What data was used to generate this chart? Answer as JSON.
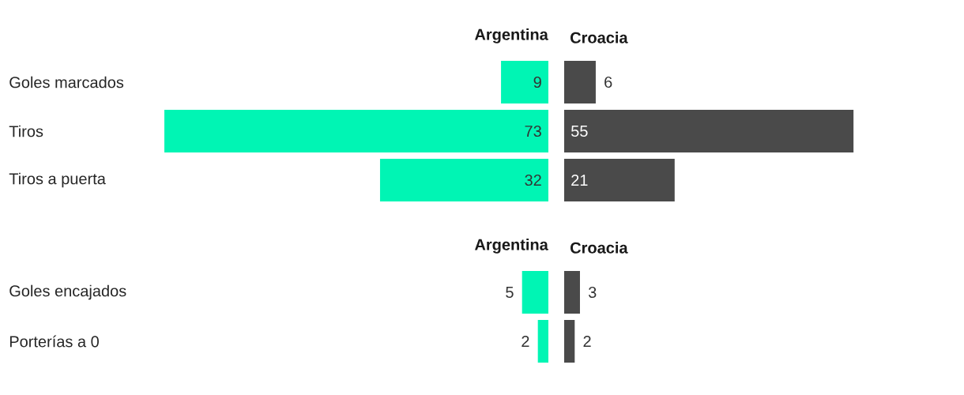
{
  "chart_data": [
    {
      "type": "bar",
      "orientation": "horizontal",
      "title": "Argentina",
      "categories": [
        "Goles marcados",
        "Tiros",
        "Tiros a puerta"
      ],
      "values": [
        9,
        73,
        32
      ],
      "color": "#00f5b4",
      "data_labels": true
    },
    {
      "type": "bar",
      "orientation": "horizontal",
      "title": "Croacia",
      "categories": [
        null,
        null,
        null
      ],
      "values": [
        6,
        55,
        21
      ],
      "color": "#4a4a4a",
      "data_labels": true
    },
    {
      "type": "bar",
      "orientation": "horizontal",
      "title": "Argentina",
      "categories": [
        "Goles encajados",
        "Porterías a 0"
      ],
      "values": [
        5,
        2
      ],
      "color": "#00f5b4",
      "data_labels": true
    },
    {
      "type": "bar",
      "orientation": "horizontal",
      "title": "Croacia",
      "categories": [
        null,
        null
      ],
      "values": [
        3,
        2
      ],
      "color": "#4a4a4a",
      "data_labels": true
    }
  ]
}
